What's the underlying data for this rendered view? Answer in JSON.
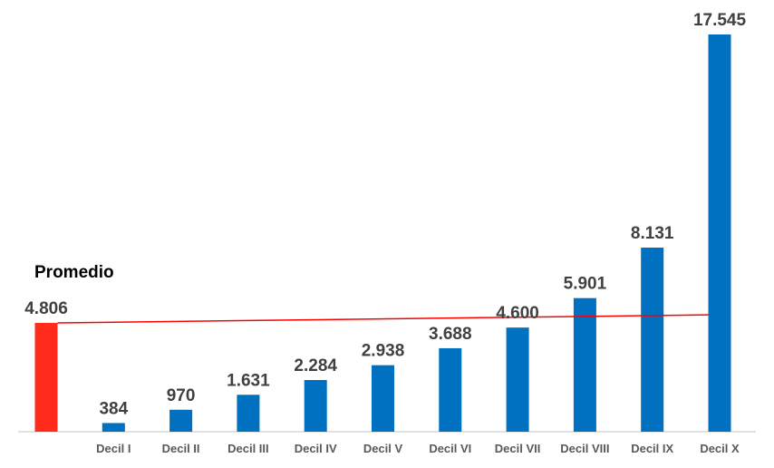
{
  "chart_data": {
    "type": "bar",
    "title": "",
    "xlabel": "",
    "ylabel": "",
    "categories": [
      "",
      "Decil I",
      "Decil II",
      "Decil III",
      "Decil IV",
      "Decil V",
      "Decil VI",
      "Decil VII",
      "Decil VIII",
      "Decil IX",
      "Decil X"
    ],
    "values": [
      4806,
      384,
      970,
      1631,
      2284,
      2938,
      3688,
      4600,
      5901,
      8131,
      17545
    ],
    "value_labels": [
      "4.806",
      "384",
      "970",
      "1.631",
      "2.284",
      "2.938",
      "3.688",
      "4.600",
      "5.901",
      "8.131",
      "17.545"
    ],
    "ylim": [
      0,
      17545
    ],
    "grid": false,
    "annotation": "Promedio",
    "trendline": {
      "start": 4806,
      "end": 5160
    },
    "colors": {
      "average_bar": "#ff2a1a",
      "deciles": "#0070c0",
      "trendline": "#ff0000",
      "axis": "#d9d9d9"
    }
  }
}
